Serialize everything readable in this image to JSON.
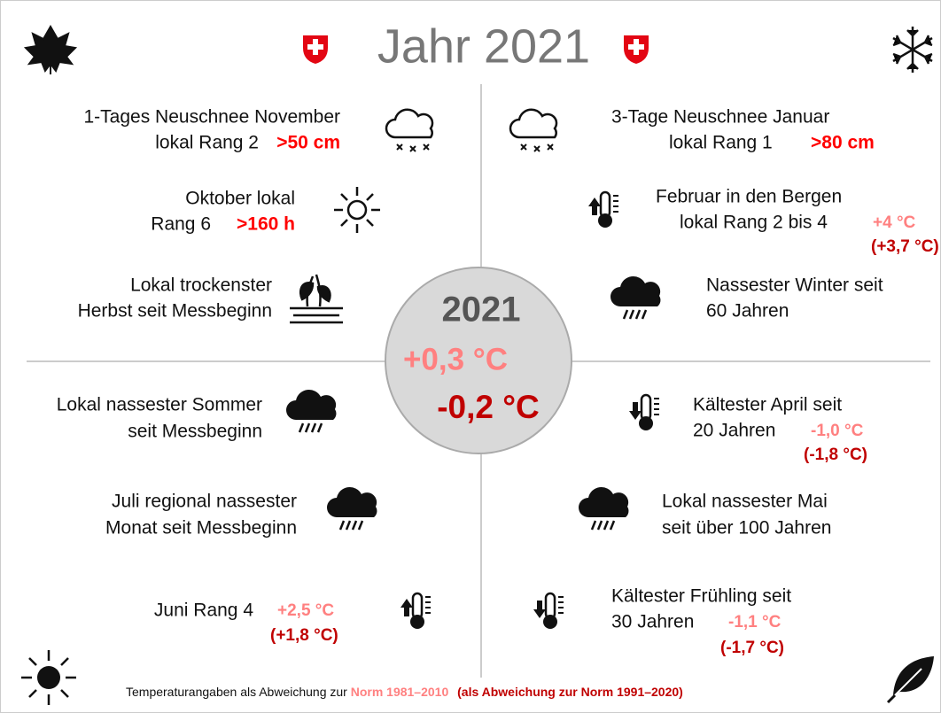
{
  "title": "Jahr 2021",
  "center": {
    "year": "2021",
    "anomaly_norm_1981": "+0,3 °C",
    "anomaly_norm_1991": "-0,2 °C"
  },
  "left_items": [
    {
      "lines": [
        "1-Tages Neuschnee November",
        "lokal Rang 2"
      ],
      "value": ">50 cm"
    },
    {
      "lines": [
        "Oktober lokal",
        "Rang 6"
      ],
      "value": ">160 h"
    },
    {
      "lines": [
        "Lokal trockenster",
        "Herbst seit Messbeginn"
      ]
    },
    {
      "lines": [
        "Lokal nassester Sommer",
        "seit Messbeginn"
      ]
    },
    {
      "lines": [
        "Juli regional nassester",
        "Monat seit Messbeginn"
      ]
    },
    {
      "lines": [
        "Juni Rang 4"
      ],
      "value": "+2,5 °C",
      "value_norm_1991": "(+1,8 °C)"
    }
  ],
  "right_items": [
    {
      "lines": [
        "3-Tage Neuschnee Januar",
        "lokal Rang 1"
      ],
      "value": ">80 cm"
    },
    {
      "lines": [
        "Februar in den Bergen",
        "lokal Rang 2 bis 4"
      ],
      "value": "+4 °C",
      "value_norm_1991": "(+3,7 °C)"
    },
    {
      "lines": [
        "Nassester Winter seit",
        "60 Jahren"
      ]
    },
    {
      "lines": [
        "Kältester April seit",
        "20 Jahren"
      ],
      "value": "-1,0 °C",
      "value_norm_1991": "(-1,8 °C)"
    },
    {
      "lines": [
        "Lokal nassester Mai",
        "seit über 100 Jahren"
      ]
    },
    {
      "lines": [
        "Kältester Frühling seit",
        "30 Jahren"
      ],
      "value": "-1,1 °C",
      "value_norm_1991": "(-1,7 °C)"
    }
  ],
  "footer": {
    "text": "Temperaturangaben als Abweichung zur",
    "norm": "Norm 1981–2010",
    "alt_norm": "(als Abweichung zur Norm 1991–2020)"
  }
}
